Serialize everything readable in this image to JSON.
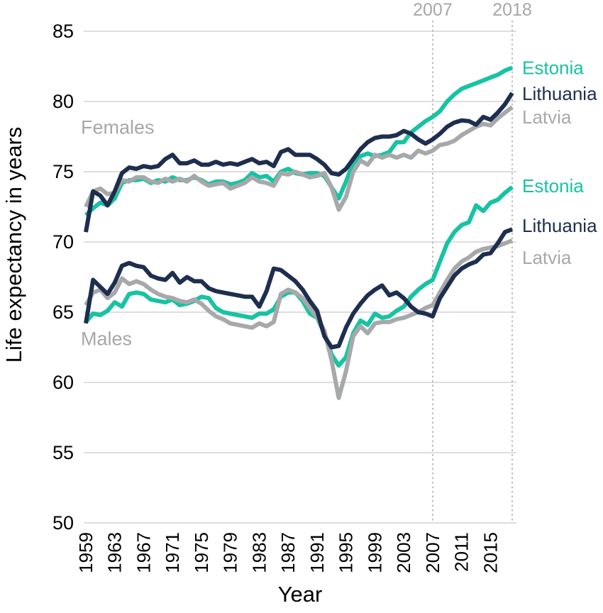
{
  "figure": {
    "background": "#ffffff"
  },
  "colors": {
    "estonia": "#17C3A2",
    "lithuania": "#1E2E4F",
    "latvia": "#A7A8AA",
    "grid": "#DADADA",
    "vline": "#BBBBBB",
    "annotation": "#A6A7A9",
    "axis_text": "#000000"
  },
  "chart_data": {
    "type": "line",
    "title": "",
    "xlabel": "Year",
    "ylabel": "Life expectancy in years",
    "x_range": [
      1959,
      2018
    ],
    "ylim": [
      50,
      85
    ],
    "yticks": [
      50,
      55,
      60,
      65,
      70,
      75,
      80,
      85
    ],
    "xticks": [
      1959,
      1963,
      1967,
      1971,
      1975,
      1979,
      1983,
      1987,
      1991,
      1995,
      1999,
      2003,
      2007,
      2011,
      2015
    ],
    "grid": "horizontal-only",
    "legend_position": "right-of-plot-inline-labels",
    "vlines": [
      {
        "x": 2007,
        "label": "2007"
      },
      {
        "x": 2018,
        "label": "2018"
      }
    ],
    "groups": [
      {
        "name": "Females",
        "label": "Females",
        "label_pos": {
          "value": 78.15
        },
        "series": [
          {
            "name": "Estonia",
            "color_key": "estonia",
            "label_value": 82.4,
            "values": [
              71.9,
              72.4,
              72.8,
              72.6,
              73.1,
              74.2,
              74.4,
              74.4,
              74.5,
              74.2,
              74.4,
              74.3,
              74.6,
              74.4,
              74.4,
              74.6,
              74.4,
              74.1,
              74.3,
              74.3,
              74.1,
              74.2,
              74.4,
              74.9,
              74.6,
              74.7,
              74.3,
              75.0,
              75.2,
              74.9,
              74.8,
              74.9,
              74.9,
              74.7,
              73.9,
              73.1,
              74.3,
              75.6,
              76.1,
              76.3,
              76.1,
              76.2,
              76.4,
              77.1,
              77.1,
              77.8,
              78.2,
              78.6,
              78.9,
              79.3,
              80.0,
              80.5,
              80.9,
              81.1,
              81.3,
              81.5,
              81.7,
              81.9,
              82.2,
              82.4
            ]
          },
          {
            "name": "Latvia",
            "color_key": "latvia",
            "label_value": 78.9,
            "values": [
              72.5,
              73.6,
              73.8,
              73.4,
              73.5,
              74.4,
              74.3,
              74.6,
              74.6,
              74.3,
              74.2,
              74.5,
              74.3,
              74.5,
              74.3,
              74.7,
              74.3,
              74.0,
              74.1,
              74.2,
              73.8,
              74.0,
              74.2,
              74.6,
              74.3,
              74.2,
              74.0,
              74.9,
              74.8,
              75.0,
              74.8,
              74.6,
              74.7,
              74.9,
              73.9,
              72.3,
              73.2,
              75.0,
              75.8,
              75.5,
              76.2,
              76.0,
              76.2,
              76.0,
              76.2,
              76.0,
              76.5,
              76.3,
              76.5,
              76.9,
              77.0,
              77.2,
              77.6,
              77.9,
              78.2,
              78.4,
              78.3,
              78.8,
              79.2,
              79.6
            ]
          },
          {
            "name": "Lithuania",
            "color_key": "lithuania",
            "label_value": 80.55,
            "values": [
              70.7,
              73.6,
              73.3,
              72.6,
              73.6,
              74.9,
              75.3,
              75.2,
              75.4,
              75.3,
              75.4,
              75.9,
              76.2,
              75.6,
              75.6,
              75.8,
              75.5,
              75.5,
              75.7,
              75.5,
              75.6,
              75.5,
              75.7,
              75.9,
              75.6,
              75.7,
              75.4,
              76.4,
              76.6,
              76.2,
              76.2,
              76.2,
              75.9,
              75.5,
              74.9,
              74.8,
              75.2,
              75.9,
              76.6,
              77.1,
              77.4,
              77.5,
              77.5,
              77.6,
              77.9,
              77.7,
              77.3,
              77.0,
              77.3,
              77.7,
              78.2,
              78.5,
              78.65,
              78.6,
              78.35,
              78.9,
              78.7,
              79.2,
              79.8,
              80.6
            ]
          }
        ]
      },
      {
        "name": "Males",
        "label": "Males",
        "label_pos": {
          "value": 63.1
        },
        "series": [
          {
            "name": "Estonia",
            "color_key": "estonia",
            "label_value": 74.0,
            "values": [
              64.3,
              64.9,
              64.8,
              65.1,
              65.7,
              65.4,
              66.3,
              66.4,
              66.3,
              65.9,
              65.8,
              65.7,
              65.9,
              65.5,
              65.6,
              65.8,
              66.1,
              66.0,
              65.3,
              65.0,
              64.9,
              64.8,
              64.7,
              64.6,
              64.9,
              64.9,
              65.2,
              66.1,
              66.4,
              66.4,
              65.8,
              64.9,
              64.6,
              63.5,
              62.0,
              61.2,
              61.8,
              63.5,
              64.4,
              64.1,
              64.9,
              64.6,
              64.7,
              65.1,
              65.4,
              66.1,
              66.6,
              67.0,
              67.3,
              68.6,
              69.9,
              70.7,
              71.2,
              71.4,
              72.6,
              72.2,
              72.8,
              73.0,
              73.5,
              73.9
            ]
          },
          {
            "name": "Latvia",
            "color_key": "latvia",
            "label_value": 68.9,
            "values": [
              65.5,
              66.4,
              66.6,
              66.0,
              66.4,
              67.4,
              67.0,
              67.2,
              67.0,
              66.6,
              66.3,
              66.1,
              66.0,
              65.8,
              65.7,
              65.9,
              65.6,
              65.1,
              64.7,
              64.5,
              64.2,
              64.1,
              64.0,
              63.9,
              64.2,
              64.0,
              64.3,
              66.3,
              66.6,
              66.4,
              66.0,
              65.3,
              64.6,
              63.7,
              61.6,
              58.9,
              60.8,
              63.3,
              64.0,
              63.5,
              64.2,
              64.3,
              64.3,
              64.5,
              64.6,
              64.8,
              65.0,
              65.3,
              65.5,
              66.4,
              67.3,
              68.1,
              68.6,
              68.9,
              69.3,
              69.5,
              69.6,
              69.7,
              69.9,
              70.1
            ]
          },
          {
            "name": "Lithuania",
            "color_key": "lithuania",
            "label_value": 71.15,
            "values": [
              64.2,
              67.3,
              66.8,
              66.3,
              67.1,
              68.3,
              68.5,
              68.3,
              68.2,
              67.6,
              67.4,
              67.3,
              67.8,
              67.1,
              67.5,
              67.2,
              67.2,
              66.7,
              66.5,
              66.4,
              66.3,
              66.2,
              66.1,
              66.1,
              65.4,
              66.5,
              68.1,
              68.0,
              67.6,
              67.2,
              66.6,
              65.8,
              65.1,
              63.3,
              62.5,
              62.6,
              63.9,
              64.9,
              65.6,
              66.2,
              66.6,
              66.9,
              66.2,
              66.4,
              66.0,
              65.4,
              65.0,
              64.9,
              64.7,
              66.0,
              66.8,
              67.6,
              68.1,
              68.4,
              68.6,
              69.1,
              69.2,
              69.9,
              70.7,
              70.9
            ]
          }
        ]
      }
    ]
  }
}
